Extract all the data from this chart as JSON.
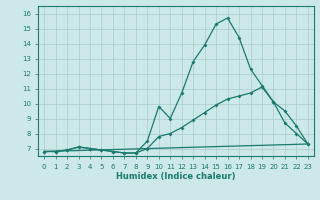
{
  "xlabel": "Humidex (Indice chaleur)",
  "ylabel": "",
  "bg_color": "#cce8e8",
  "line_color": "#1a7a6e",
  "grid_color": "#aacccc",
  "xlim": [
    -0.5,
    23.5
  ],
  "ylim": [
    6.5,
    16.5
  ],
  "xticks": [
    0,
    1,
    2,
    3,
    4,
    5,
    6,
    7,
    8,
    9,
    10,
    11,
    12,
    13,
    14,
    15,
    16,
    17,
    18,
    19,
    20,
    21,
    22,
    23
  ],
  "yticks": [
    7,
    8,
    9,
    10,
    11,
    12,
    13,
    14,
    15,
    16
  ],
  "series1": {
    "x": [
      0,
      1,
      2,
      3,
      4,
      5,
      6,
      7,
      8,
      9,
      10,
      11,
      12,
      13,
      14,
      15,
      16,
      17,
      18,
      19,
      20,
      21,
      22,
      23
    ],
    "y": [
      6.8,
      6.8,
      6.9,
      7.1,
      7.0,
      6.9,
      6.8,
      6.7,
      6.7,
      7.5,
      9.8,
      9.0,
      10.7,
      12.8,
      13.9,
      15.3,
      15.7,
      14.4,
      12.3,
      11.2,
      10.1,
      9.5,
      8.5,
      7.3
    ]
  },
  "series2": {
    "x": [
      0,
      1,
      2,
      3,
      4,
      5,
      6,
      7,
      8,
      9,
      10,
      11,
      12,
      13,
      14,
      15,
      16,
      17,
      18,
      19,
      20,
      21,
      22,
      23
    ],
    "y": [
      6.8,
      6.8,
      6.9,
      7.1,
      7.0,
      6.9,
      6.8,
      6.7,
      6.7,
      7.0,
      7.8,
      8.0,
      8.4,
      8.9,
      9.4,
      9.9,
      10.3,
      10.5,
      10.7,
      11.1,
      10.1,
      8.7,
      8.0,
      7.3
    ]
  },
  "series3": {
    "x": [
      0,
      23
    ],
    "y": [
      6.8,
      7.3
    ]
  }
}
